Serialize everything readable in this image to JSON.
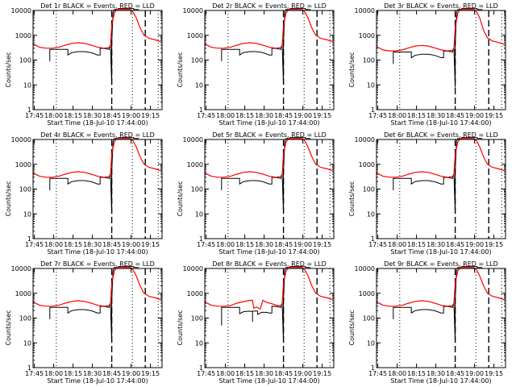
{
  "chart_data": [
    {
      "type": "line",
      "title": "Det 1r BLACK = Events, RED = LLD",
      "xlabel": "Start Time (18-Jul-10 17:44:00)",
      "ylabel": "Counts/sec",
      "variant": "normal",
      "scale": 1.0
    },
    {
      "type": "line",
      "title": "Det 2r BLACK = Events, RED = LLD",
      "xlabel": "Start Time (18-Jul-10 17:44:00)",
      "ylabel": "Counts/sec",
      "variant": "normal",
      "scale": 1.0
    },
    {
      "type": "line",
      "title": "Det 3r BLACK = Events, RED = LLD",
      "xlabel": "Start Time (18-Jul-10 17:44:00)",
      "ylabel": "Counts/sec",
      "variant": "normal",
      "scale": 0.78
    },
    {
      "type": "line",
      "title": "Det 4r BLACK = Events, RED = LLD",
      "xlabel": "Start Time (18-Jul-10 17:44:00)",
      "ylabel": "Counts/sec",
      "variant": "normal",
      "scale": 1.0
    },
    {
      "type": "line",
      "title": "Det 5r BLACK = Events, RED = LLD",
      "xlabel": "Start Time (18-Jul-10 17:44:00)",
      "ylabel": "Counts/sec",
      "variant": "normal",
      "scale": 1.0
    },
    {
      "type": "line",
      "title": "Det 6r BLACK = Events, RED = LLD",
      "xlabel": "Start Time (18-Jul-10 17:44:00)",
      "ylabel": "Counts/sec",
      "variant": "normal",
      "scale": 1.0
    },
    {
      "type": "line",
      "title": "Det 7r BLACK = Events, RED = LLD",
      "xlabel": "Start Time (18-Jul-10 17:44:00)",
      "ylabel": "Counts/sec",
      "variant": "normal",
      "scale": 1.0
    },
    {
      "type": "line",
      "title": "Det 8r BLACK = Events, RED = LLD",
      "xlabel": "Start Time (18-Jul-10 17:44:00)",
      "ylabel": "Counts/sec",
      "variant": "dips",
      "scale": 1.0
    },
    {
      "type": "line",
      "title": "Det 9r BLACK = Events, RED = LLD",
      "xlabel": "Start Time (18-Jul-10 17:44:00)",
      "ylabel": "Counts/sec",
      "variant": "normal",
      "scale": 1.0
    }
  ],
  "axes": {
    "x_ticks": [
      "17:45",
      "18:00",
      "18:15",
      "18:30",
      "18:45",
      "19:00",
      "19:15"
    ],
    "x_tick_minutes": [
      1,
      16,
      31,
      46,
      61,
      76,
      91
    ],
    "x_range_minutes": [
      0,
      100
    ],
    "y_ticks": [
      "1",
      "10",
      "100",
      "1000",
      "10000"
    ],
    "y_range_log": [
      1,
      10000
    ],
    "dotted_lines_minutes": [
      18,
      77,
      97
    ],
    "dashed_lines_minutes": [
      61,
      87
    ]
  },
  "series_template": {
    "red_lld": {
      "color": "#ff0000",
      "points": [
        [
          0,
          450
        ],
        [
          5,
          330
        ],
        [
          10,
          300
        ],
        [
          15,
          300
        ],
        [
          20,
          330
        ],
        [
          25,
          400
        ],
        [
          30,
          470
        ],
        [
          35,
          500
        ],
        [
          40,
          470
        ],
        [
          45,
          400
        ],
        [
          50,
          330
        ],
        [
          55,
          300
        ],
        [
          59,
          320
        ],
        [
          60,
          400
        ],
        [
          61,
          2500
        ],
        [
          63,
          8000
        ],
        [
          65,
          11000
        ],
        [
          70,
          11000
        ],
        [
          74,
          11000
        ],
        [
          76,
          10500
        ],
        [
          78,
          8000
        ],
        [
          80,
          5000
        ],
        [
          83,
          2000
        ],
        [
          86,
          1000
        ],
        [
          90,
          750
        ],
        [
          95,
          650
        ],
        [
          99,
          550
        ]
      ]
    },
    "black_events": {
      "color": "#000000",
      "points": [
        [
          13,
          90
        ],
        [
          13,
          270
        ],
        [
          27,
          270
        ],
        [
          27,
          160
        ],
        [
          30,
          200
        ],
        [
          35,
          220
        ],
        [
          40,
          220
        ],
        [
          45,
          200
        ],
        [
          50,
          160
        ],
        [
          52,
          160
        ],
        [
          52,
          300
        ],
        [
          56,
          290
        ],
        [
          59,
          270
        ],
        [
          59,
          300
        ],
        [
          60,
          400
        ],
        [
          61,
          10
        ],
        [
          61,
          500
        ],
        [
          62,
          8000
        ],
        [
          63,
          11000
        ],
        [
          66,
          11000
        ],
        [
          66,
          12000
        ],
        [
          78,
          12000
        ],
        [
          78,
          11000
        ],
        [
          82,
          11000
        ]
      ]
    }
  }
}
